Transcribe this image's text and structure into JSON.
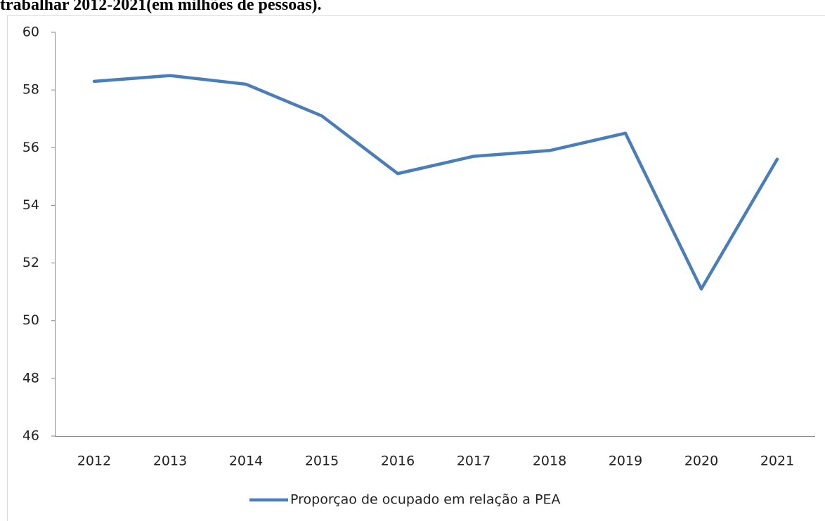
{
  "chart_data": {
    "type": "line",
    "title": "trabalhar 2012-2021(em milhões de pessoas).",
    "categories": [
      "2012",
      "2013",
      "2014",
      "2015",
      "2016",
      "2017",
      "2018",
      "2019",
      "2020",
      "2021"
    ],
    "series": [
      {
        "name": "Proporçao de ocupado em relação a PEA",
        "color": "#4a7ebb",
        "values": [
          58.3,
          58.5,
          58.2,
          57.1,
          55.1,
          55.7,
          55.9,
          56.5,
          51.1,
          55.6
        ]
      }
    ],
    "ylim": [
      46,
      60
    ],
    "yticks": [
      46,
      48,
      50,
      52,
      54,
      56,
      58,
      60
    ],
    "grid": false,
    "legend": "bottom"
  }
}
